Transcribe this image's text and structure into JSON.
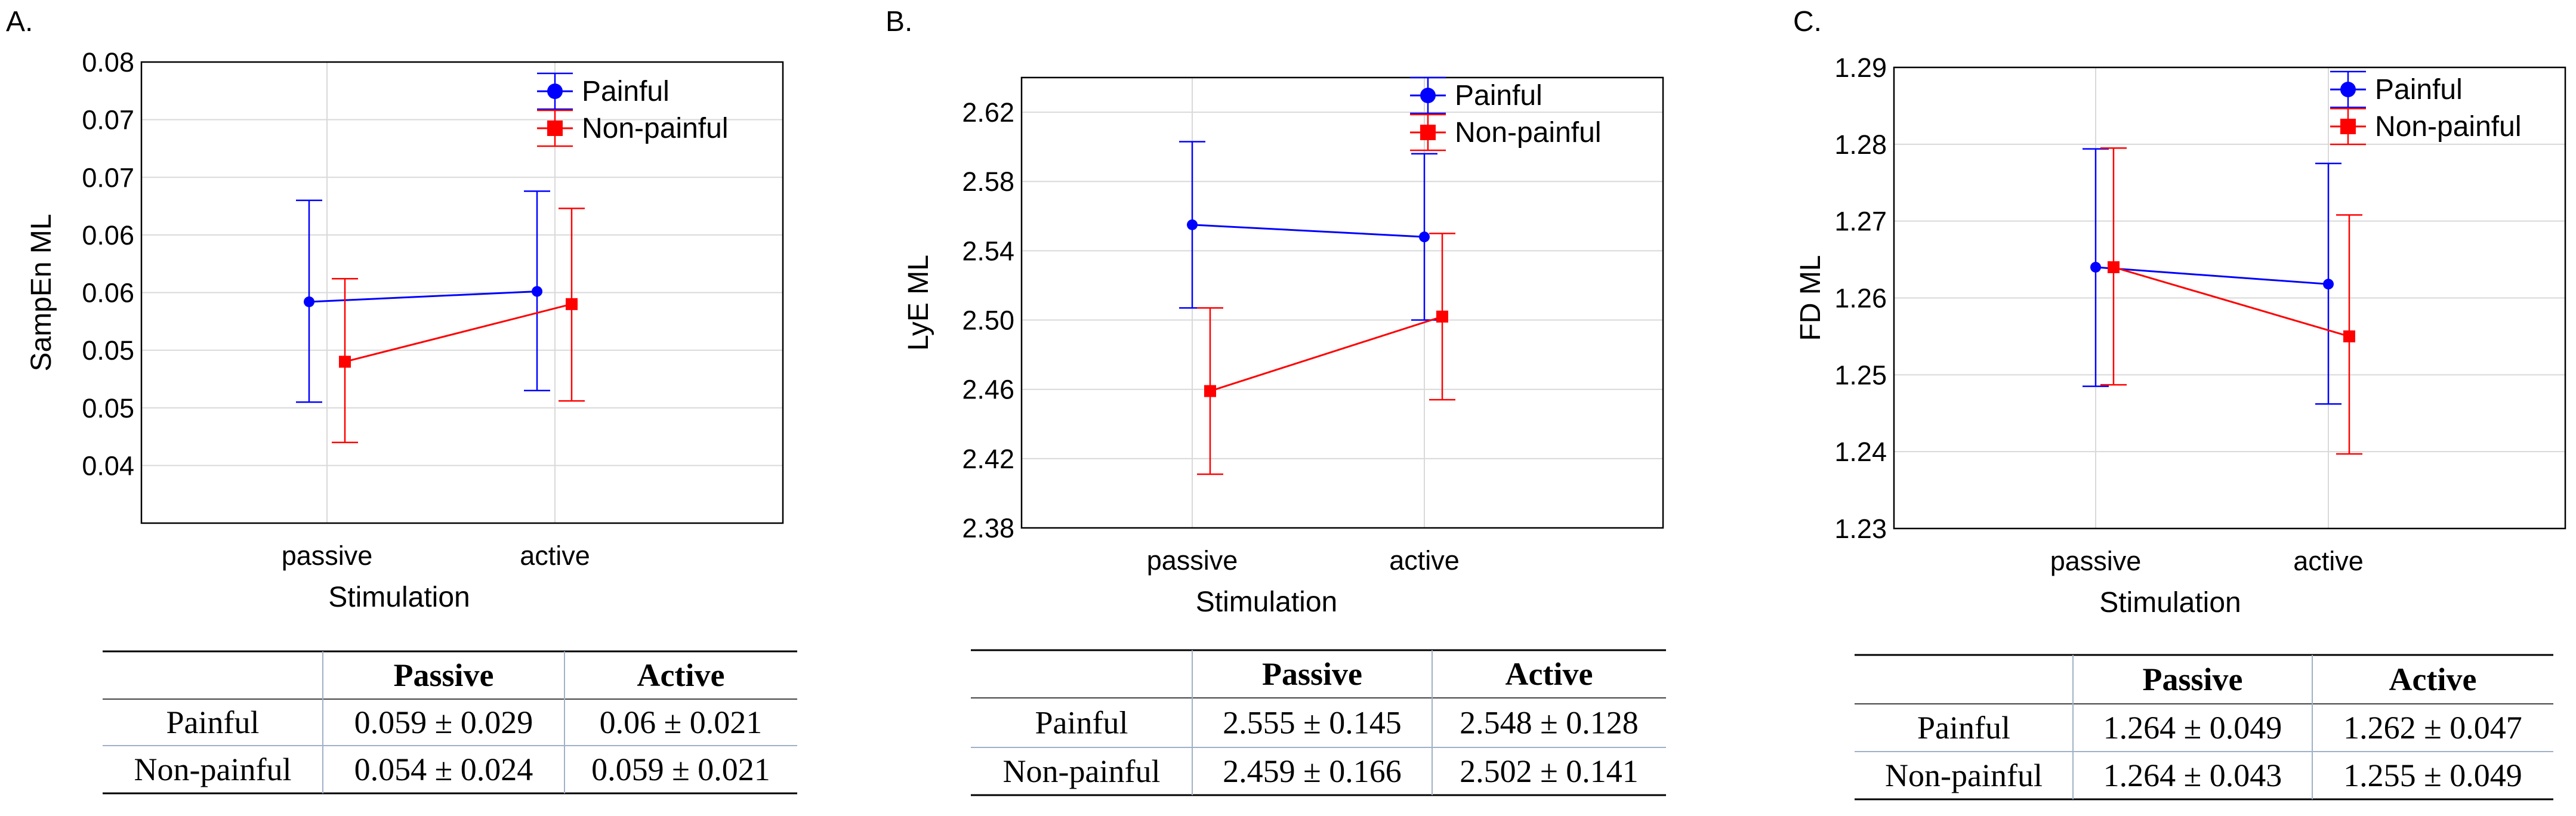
{
  "chart_data": [
    {
      "type": "line",
      "panel_label": "A.",
      "categories": [
        "passive",
        "active"
      ],
      "xlabel": "Stimulation",
      "ylabel": "SampEn ML",
      "ylim": [
        0.04,
        0.08
      ],
      "yticks": [
        0.04,
        0.045,
        0.05,
        0.055,
        0.06,
        0.065,
        0.07,
        0.075,
        0.08
      ],
      "ytick_labels": [
        "0.04",
        "0.05",
        "0.05",
        "0.06",
        "0.06",
        "0.07",
        "0.07",
        "0.08"
      ],
      "ytick_values": [
        0.045,
        0.05,
        0.055,
        0.06,
        0.065,
        0.07,
        0.075,
        0.08
      ],
      "grid": true,
      "legend_position": "top-right",
      "series": [
        {
          "name": "Painful",
          "color": "#0000ff",
          "marker": "circle",
          "values": [
            0.0592,
            0.0601
          ],
          "err_low": [
            0.0505,
            0.0515
          ],
          "err_high": [
            0.068,
            0.0688
          ]
        },
        {
          "name": "Non-painful",
          "color": "#ff0000",
          "marker": "square",
          "values": [
            0.054,
            0.059
          ],
          "err_low": [
            0.047,
            0.0506
          ],
          "err_high": [
            0.0612,
            0.0673
          ]
        }
      ],
      "table": {
        "headers": [
          "",
          "Passive",
          "Active"
        ],
        "rows": [
          [
            "Painful",
            "0.059 ± 0.029",
            "0.06 ± 0.021"
          ],
          [
            "Non-painful",
            "0.054 ± 0.024",
            "0.059 ± 0.021"
          ]
        ]
      }
    },
    {
      "type": "line",
      "panel_label": "B.",
      "categories": [
        "passive",
        "active"
      ],
      "xlabel": "Stimulation",
      "ylabel": "LyE ML",
      "ylim": [
        2.38,
        2.64
      ],
      "ytick_labels": [
        "2.38",
        "2.42",
        "2.46",
        "2.50",
        "2.54",
        "2.58",
        "2.62"
      ],
      "ytick_values": [
        2.38,
        2.42,
        2.46,
        2.5,
        2.54,
        2.58,
        2.62
      ],
      "grid": true,
      "legend_position": "top-right",
      "series": [
        {
          "name": "Painful",
          "color": "#0000ff",
          "marker": "circle",
          "values": [
            2.555,
            2.548
          ],
          "err_low": [
            2.507,
            2.5
          ],
          "err_high": [
            2.603,
            2.596
          ]
        },
        {
          "name": "Non-painful",
          "color": "#ff0000",
          "marker": "square",
          "values": [
            2.459,
            2.502
          ],
          "err_low": [
            2.411,
            2.454
          ],
          "err_high": [
            2.507,
            2.55
          ]
        }
      ],
      "table": {
        "headers": [
          "",
          "Passive",
          "Active"
        ],
        "rows": [
          [
            "Painful",
            "2.555 ± 0.145",
            "2.548 ± 0.128"
          ],
          [
            "Non-painful",
            "2.459 ± 0.166",
            "2.502 ± 0.141"
          ]
        ]
      }
    },
    {
      "type": "line",
      "panel_label": "C.",
      "categories": [
        "passive",
        "active"
      ],
      "xlabel": "Stimulation",
      "ylabel": "FD ML",
      "ylim": [
        1.23,
        1.29
      ],
      "ytick_labels": [
        "1.23",
        "1.24",
        "1.25",
        "1.26",
        "1.27",
        "1.28",
        "1.29"
      ],
      "ytick_values": [
        1.23,
        1.24,
        1.25,
        1.26,
        1.27,
        1.28,
        1.29
      ],
      "grid": true,
      "legend_position": "top-right",
      "series": [
        {
          "name": "Painful",
          "color": "#0000ff",
          "marker": "circle",
          "values": [
            1.264,
            1.2618
          ],
          "err_low": [
            1.2485,
            1.2462
          ],
          "err_high": [
            1.2794,
            1.2775
          ]
        },
        {
          "name": "Non-painful",
          "color": "#ff0000",
          "marker": "square",
          "values": [
            1.264,
            1.255
          ],
          "err_low": [
            1.2487,
            1.2397
          ],
          "err_high": [
            1.2795,
            1.2708
          ]
        }
      ],
      "table": {
        "headers": [
          "",
          "Passive",
          "Active"
        ],
        "rows": [
          [
            "Painful",
            "1.264 ± 0.049",
            "1.262 ± 0.047"
          ],
          [
            "Non-painful",
            "1.264 ± 0.043",
            "1.255 ± 0.049"
          ]
        ]
      }
    }
  ]
}
